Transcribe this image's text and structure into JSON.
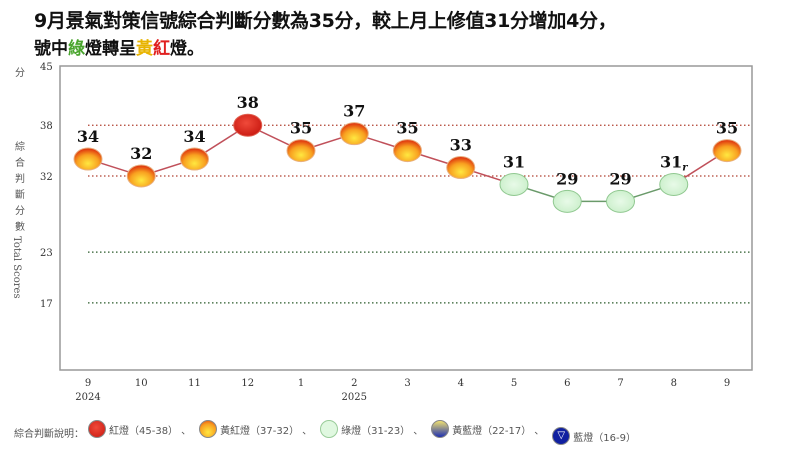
{
  "title": {
    "line1": "9月景氣對策信號綜合判斷分數為35分，較上月上修值31分增加4分，",
    "line2_parts": [
      "號中",
      "綠",
      "燈轉呈",
      "黃",
      "紅",
      "燈。"
    ]
  },
  "chart_data": {
    "type": "line",
    "title": "",
    "ylabel_cn": "綜合判斷分數",
    "ylabel_en": "Total Scores",
    "yunit": "分",
    "ylim": [
      9,
      45
    ],
    "yticks": [
      45,
      38,
      32,
      23,
      17
    ],
    "gridlines": [
      38,
      32,
      23,
      17
    ],
    "categories": [
      "9",
      "10",
      "11",
      "12",
      "1",
      "2",
      "3",
      "4",
      "5",
      "6",
      "7",
      "8",
      "9"
    ],
    "year_labels": [
      {
        "index": 0,
        "text": "2024"
      },
      {
        "index": 5,
        "text": "2025"
      }
    ],
    "values": [
      34,
      32,
      34,
      38,
      35,
      37,
      35,
      33,
      31,
      29,
      29,
      31,
      35
    ],
    "value_labels": [
      "34",
      "32",
      "34",
      "38",
      "35",
      "37",
      "35",
      "33",
      "31",
      "29",
      "29",
      "31",
      "35"
    ],
    "revised_flags": [
      false,
      false,
      false,
      false,
      false,
      false,
      false,
      false,
      false,
      false,
      false,
      true,
      false
    ],
    "revised_mark": "r",
    "signals": [
      "yellow-red",
      "yellow-red",
      "yellow-red",
      "red",
      "yellow-red",
      "yellow-red",
      "yellow-red",
      "yellow-red",
      "green",
      "green",
      "green",
      "green",
      "yellow-red"
    ]
  },
  "legend": {
    "prefix": "綜合判斷說明：",
    "items": [
      {
        "signal": "red",
        "label": "紅燈（45-38）",
        "color": "#e03020"
      },
      {
        "signal": "yellow-red",
        "label": "黃紅燈（37-32）",
        "color": "#f5a020"
      },
      {
        "signal": "green",
        "label": "綠燈（31-23）",
        "color": "#d8f5d8"
      },
      {
        "signal": "yellow-blue",
        "label": "黃藍燈（22-17）",
        "color": "#6060c0"
      },
      {
        "signal": "blue",
        "label": "藍燈（16-9）",
        "color": "#1020a0"
      }
    ],
    "separator": "、"
  }
}
